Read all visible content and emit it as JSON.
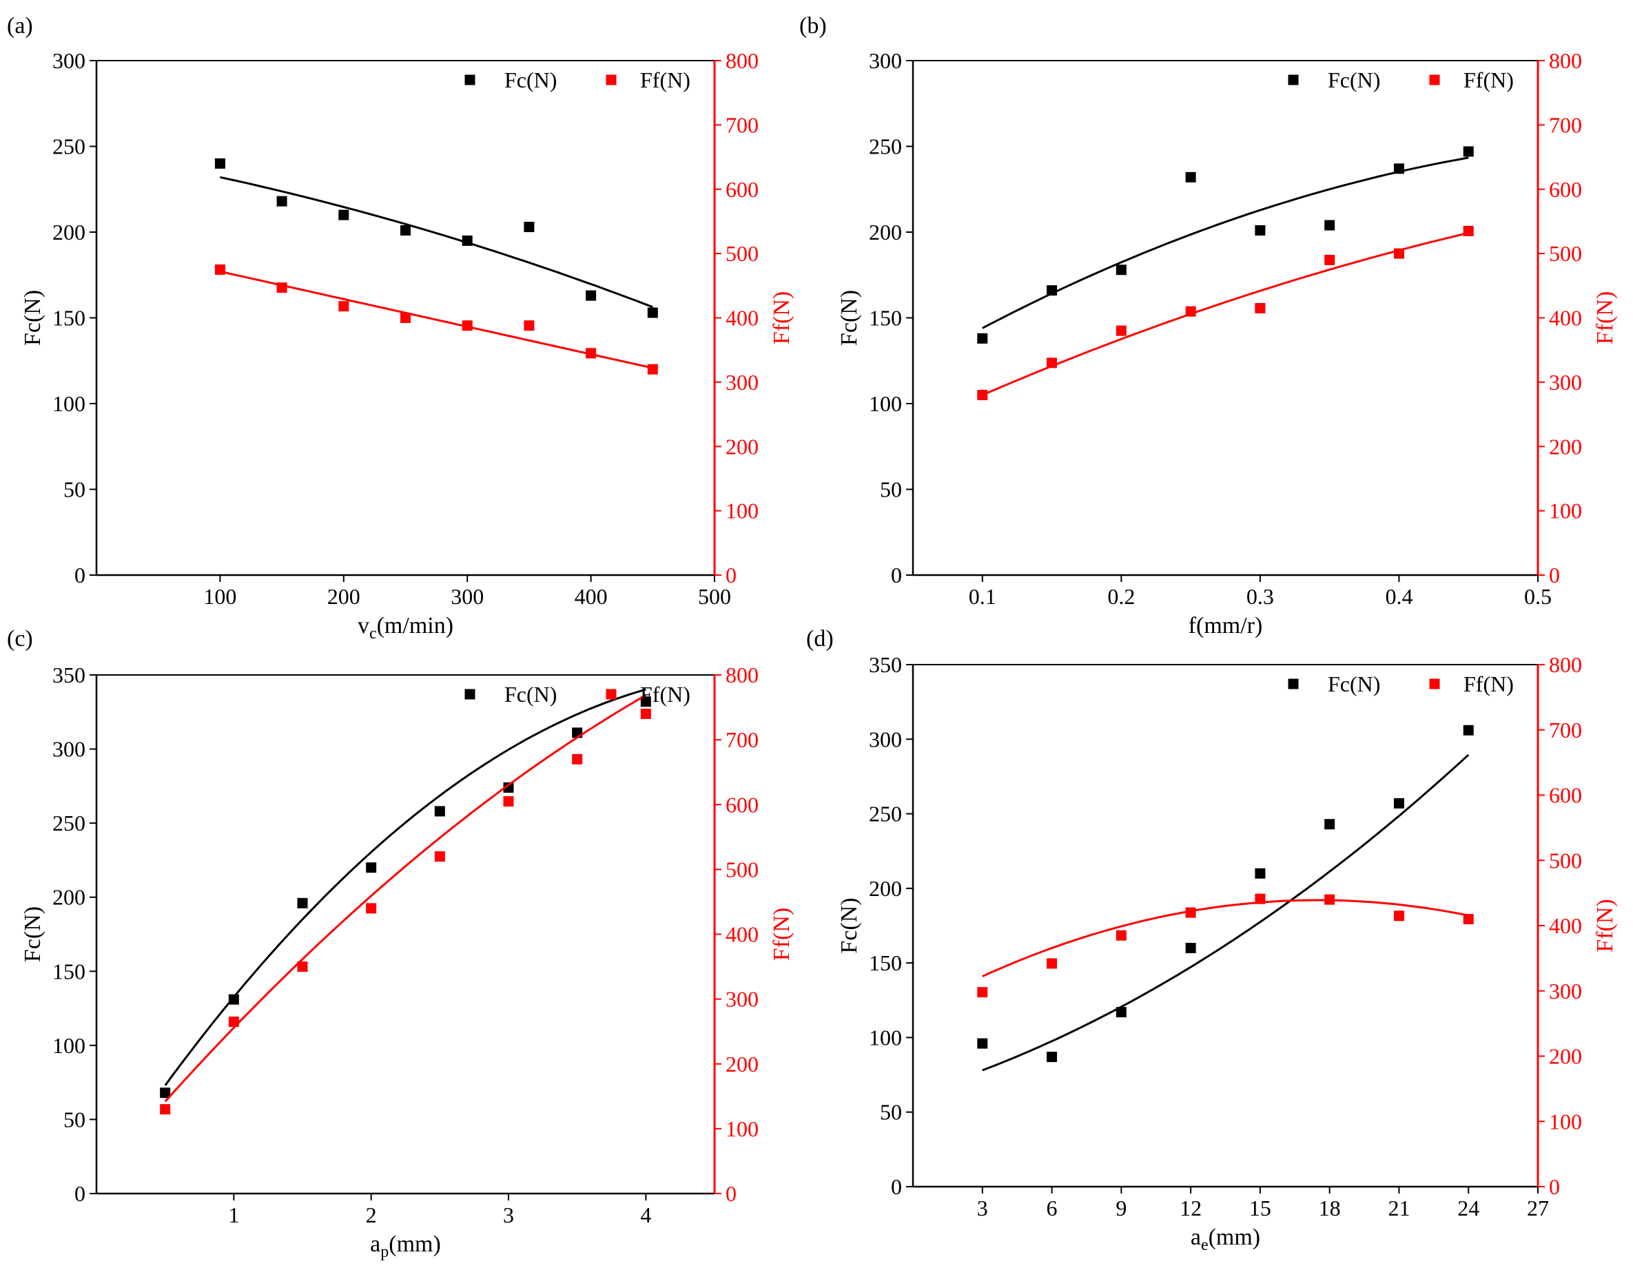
{
  "figure": {
    "colors": {
      "fc": "#000000",
      "ff": "#ff0000",
      "axis": "#000000"
    }
  },
  "chart_data": [
    {
      "panel": "(a)",
      "type": "scatter",
      "xlabel_main": "v",
      "xlabel_sub": "c",
      "xlabel_rest": "(m/min)",
      "ylabel_left": "Fc(N)",
      "ylabel_right": "Ff(N)",
      "xlim": [
        0,
        500
      ],
      "ylim_left": [
        0,
        300
      ],
      "ylim_right": [
        0,
        800
      ],
      "xticks": [
        100,
        200,
        300,
        400,
        500
      ],
      "xtick_labels": [
        "100",
        "200",
        "300",
        "400",
        "500"
      ],
      "yticks_left": [
        0,
        50,
        100,
        150,
        200,
        250,
        300
      ],
      "yticks_right": [
        0,
        100,
        200,
        300,
        400,
        500,
        600,
        700,
        800
      ],
      "legend": [
        "Fc(N)",
        "Ff(N)"
      ],
      "series": [
        {
          "name": "Fc(N)",
          "axis": "left",
          "x": [
            100,
            150,
            200,
            250,
            300,
            350,
            400,
            450
          ],
          "y": [
            240,
            218,
            210,
            201,
            195,
            203,
            163,
            153
          ],
          "fit": [
            -0.00017,
            -0.1228,
            246
          ]
        },
        {
          "name": "Ff(N)",
          "axis": "right",
          "x": [
            100,
            150,
            200,
            250,
            300,
            350,
            400,
            450
          ],
          "y": [
            475,
            447,
            418,
            400,
            388,
            388,
            345,
            320
          ],
          "fit": [
            0,
            -0.4286,
            514.9
          ]
        }
      ]
    },
    {
      "panel": "(b)",
      "type": "scatter",
      "xlabel_main": "f(mm/r)",
      "xlabel_sub": "",
      "xlabel_rest": "",
      "ylabel_left": "Fc(N)",
      "ylabel_right": "Ff(N)",
      "xlim": [
        0.05,
        0.5
      ],
      "ylim_left": [
        0,
        300
      ],
      "ylim_right": [
        0,
        800
      ],
      "xticks": [
        0.1,
        0.2,
        0.3,
        0.4,
        0.5
      ],
      "xtick_labels": [
        "0.1",
        "0.2",
        "0.3",
        "0.4",
        "0.5"
      ],
      "yticks_left": [
        0,
        50,
        100,
        150,
        200,
        250,
        300
      ],
      "yticks_right": [
        0,
        100,
        200,
        300,
        400,
        500,
        600,
        700,
        800
      ],
      "legend": [
        "Fc(N)",
        "Ff(N)"
      ],
      "series": [
        {
          "name": "Fc(N)",
          "axis": "left",
          "x": [
            0.1,
            0.15,
            0.2,
            0.25,
            0.3,
            0.35,
            0.4,
            0.45
          ],
          "y": [
            138,
            166,
            178,
            232,
            201,
            204,
            237,
            247
          ],
          "fit": [
            -400,
            504,
            97.6
          ]
        },
        {
          "name": "Ff(N)",
          "axis": "right",
          "x": [
            0.1,
            0.15,
            0.2,
            0.25,
            0.3,
            0.35,
            0.4,
            0.45
          ],
          "y": [
            280,
            330,
            380,
            410,
            415,
            490,
            500,
            535
          ],
          "fit": [
            -600,
            1050,
            181
          ]
        }
      ]
    },
    {
      "panel": "(c)",
      "type": "scatter",
      "xlabel_main": "a",
      "xlabel_sub": "p",
      "xlabel_rest": "(mm)",
      "ylabel_left": "Fc(N)",
      "ylabel_right": "Ff(N)",
      "xlim": [
        0,
        4.5
      ],
      "ylim_left": [
        0,
        350
      ],
      "ylim_right": [
        0,
        800
      ],
      "xticks": [
        1,
        2,
        3,
        4
      ],
      "xtick_labels": [
        "1",
        "2",
        "3",
        "4"
      ],
      "yticks_left": [
        0,
        50,
        100,
        150,
        200,
        250,
        300,
        350
      ],
      "yticks_right": [
        0,
        100,
        200,
        300,
        400,
        500,
        600,
        700,
        800
      ],
      "legend": [
        "Fc(N)",
        "Ff(N)"
      ],
      "series": [
        {
          "name": "Fc(N)",
          "axis": "left",
          "x": [
            0.5,
            1,
            1.5,
            2,
            2.5,
            3,
            3.5,
            4
          ],
          "y": [
            68,
            131,
            196,
            220,
            258,
            274,
            311,
            332
          ],
          "fit": [
            -14.3,
            140.7,
            6.2
          ]
        },
        {
          "name": "Ff(N)",
          "axis": "right",
          "x": [
            0.5,
            1,
            1.5,
            2,
            2.5,
            3,
            3.5,
            4
          ],
          "y": [
            130,
            265,
            350,
            440,
            520,
            605,
            670,
            740
          ],
          "fit": [
            -16.2,
            252,
            20
          ]
        }
      ]
    },
    {
      "panel": "(d)",
      "type": "scatter",
      "xlabel_main": "a",
      "xlabel_sub": "e",
      "xlabel_rest": "(mm)",
      "ylabel_left": "Fc(N)",
      "ylabel_right": "Ff(N)",
      "xlim": [
        0,
        27
      ],
      "ylim_left": [
        0,
        350
      ],
      "ylim_right": [
        0,
        800
      ],
      "xticks": [
        3,
        6,
        9,
        12,
        15,
        18,
        21,
        24,
        27
      ],
      "xtick_labels": [
        "3",
        "6",
        "9",
        "12",
        "15",
        "18",
        "21",
        "24",
        "27"
      ],
      "yticks_left": [
        0,
        50,
        100,
        150,
        200,
        250,
        300,
        350
      ],
      "yticks_right": [
        0,
        100,
        200,
        300,
        400,
        500,
        600,
        700,
        800
      ],
      "legend": [
        "Fc(N)",
        "Ff(N)"
      ],
      "series": [
        {
          "name": "Fc(N)",
          "axis": "left",
          "x": [
            3,
            6,
            9,
            12,
            15,
            18,
            21,
            24
          ],
          "y": [
            96,
            87,
            117,
            160,
            210,
            243,
            257,
            306
          ],
          "fit": [
            0.1984,
            4.714,
            62.1
          ]
        },
        {
          "name": "Ff(N)",
          "axis": "right",
          "x": [
            3,
            6,
            9,
            12,
            15,
            18,
            21,
            24
          ],
          "y": [
            298,
            342,
            385,
            420,
            441,
            440,
            415,
            410
          ],
          "fit": [
            -0.5556,
            19.44,
            269
          ]
        }
      ]
    }
  ]
}
